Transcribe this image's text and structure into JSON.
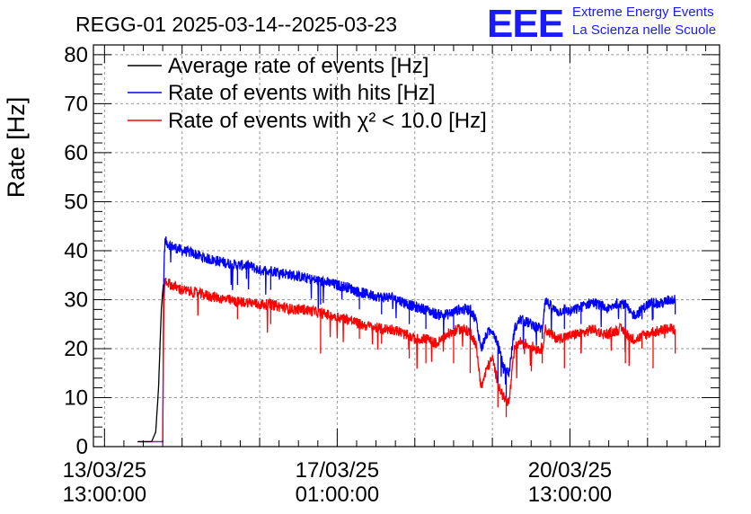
{
  "header": {
    "title": "REGG-01 2025-03-14--2025-03-23",
    "logo_text": "EEE",
    "logo_line1": "Extreme Energy Events",
    "logo_line2": "La Scienza nelle Scuole"
  },
  "chart_data": {
    "type": "line",
    "title": "REGG-01 2025-03-14--2025-03-23",
    "xlabel": "",
    "ylabel": "Rate [Hz]",
    "ylim": [
      0,
      82
    ],
    "yticks": [
      0,
      10,
      20,
      30,
      40,
      50,
      60,
      70,
      80
    ],
    "xlim_hours": [
      -4,
      222
    ],
    "xticks": [
      {
        "hour": 0,
        "date": "13/03/25",
        "time": "13:00:00"
      },
      {
        "hour": 84,
        "date": "17/03/25",
        "time": "01:00:00"
      },
      {
        "hour": 168,
        "date": "20/03/25",
        "time": "13:00:00"
      }
    ],
    "x_unit": "hours since 13/03/25 13:00:00",
    "grid": true,
    "legend_position": "top-left",
    "series": [
      {
        "name": "Average rate of events [Hz]",
        "color": "#000000",
        "points": [
          [
            12,
            1
          ],
          [
            17,
            1
          ],
          [
            18.5,
            3
          ],
          [
            19.5,
            12
          ],
          [
            20.5,
            28
          ],
          [
            21.2,
            33
          ],
          [
            21.5,
            33
          ]
        ]
      },
      {
        "name": "Rate of events with hits [Hz]",
        "color": "#0000ff",
        "points": [
          [
            12,
            1
          ],
          [
            21,
            1
          ],
          [
            21.4,
            36
          ],
          [
            21.8,
            42
          ],
          [
            24,
            41
          ],
          [
            28,
            40
          ],
          [
            32,
            39.5
          ],
          [
            36,
            38.5
          ],
          [
            40,
            38
          ],
          [
            44,
            37.5
          ],
          [
            48,
            37
          ],
          [
            52,
            37
          ],
          [
            56,
            36
          ],
          [
            60,
            36
          ],
          [
            64,
            35.5
          ],
          [
            68,
            35
          ],
          [
            72,
            34.5
          ],
          [
            76,
            34
          ],
          [
            80,
            33.5
          ],
          [
            84,
            33
          ],
          [
            88,
            32.5
          ],
          [
            92,
            31.5
          ],
          [
            96,
            31
          ],
          [
            100,
            30.5
          ],
          [
            104,
            30.5
          ],
          [
            108,
            29.5
          ],
          [
            112,
            28.5
          ],
          [
            116,
            28
          ],
          [
            120,
            27
          ],
          [
            124,
            27
          ],
          [
            128,
            28
          ],
          [
            132,
            28
          ],
          [
            134,
            26
          ],
          [
            136,
            20
          ],
          [
            138,
            23
          ],
          [
            140,
            24
          ],
          [
            142,
            21
          ],
          [
            144,
            16
          ],
          [
            146,
            15
          ],
          [
            148,
            24
          ],
          [
            150,
            26
          ],
          [
            152,
            25.5
          ],
          [
            154,
            25
          ],
          [
            156,
            24.5
          ],
          [
            158,
            24
          ],
          [
            159,
            30
          ],
          [
            162,
            28
          ],
          [
            164,
            27.5
          ],
          [
            166,
            28
          ],
          [
            168,
            27.5
          ],
          [
            170,
            28
          ],
          [
            172,
            28.5
          ],
          [
            174,
            29
          ],
          [
            176,
            29.5
          ],
          [
            178,
            29
          ],
          [
            180,
            28.5
          ],
          [
            182,
            28
          ],
          [
            184,
            29
          ],
          [
            186,
            29.5
          ],
          [
            188,
            29
          ],
          [
            190,
            27
          ],
          [
            192,
            27
          ],
          [
            194,
            28
          ],
          [
            196,
            29
          ],
          [
            198,
            29.5
          ],
          [
            200,
            29
          ],
          [
            202,
            29.5
          ],
          [
            204,
            30
          ],
          [
            206,
            30
          ]
        ]
      },
      {
        "name": "Rate of events with χ² < 10.0 [Hz]",
        "color": "#ff0000",
        "points": [
          [
            12,
            1
          ],
          [
            21,
            1
          ],
          [
            21.4,
            28
          ],
          [
            21.8,
            34
          ],
          [
            24,
            33
          ],
          [
            28,
            32
          ],
          [
            32,
            31.5
          ],
          [
            36,
            31
          ],
          [
            40,
            30.5
          ],
          [
            44,
            30
          ],
          [
            48,
            29.5
          ],
          [
            52,
            29.5
          ],
          [
            56,
            29
          ],
          [
            60,
            29
          ],
          [
            64,
            28.5
          ],
          [
            68,
            28
          ],
          [
            72,
            28
          ],
          [
            76,
            27.5
          ],
          [
            80,
            27
          ],
          [
            84,
            26.5
          ],
          [
            88,
            26
          ],
          [
            92,
            25
          ],
          [
            96,
            24.5
          ],
          [
            100,
            24
          ],
          [
            104,
            24
          ],
          [
            108,
            23
          ],
          [
            112,
            22
          ],
          [
            116,
            22
          ],
          [
            120,
            21
          ],
          [
            124,
            23
          ],
          [
            128,
            24
          ],
          [
            132,
            23.5
          ],
          [
            134,
            21
          ],
          [
            136,
            12
          ],
          [
            138,
            16
          ],
          [
            140,
            18
          ],
          [
            142,
            13
          ],
          [
            144,
            10
          ],
          [
            146,
            9
          ],
          [
            148,
            20
          ],
          [
            150,
            21.5
          ],
          [
            152,
            21
          ],
          [
            154,
            20.5
          ],
          [
            156,
            20
          ],
          [
            158,
            20
          ],
          [
            159,
            24
          ],
          [
            162,
            22.5
          ],
          [
            164,
            22
          ],
          [
            166,
            22.5
          ],
          [
            168,
            22.5
          ],
          [
            170,
            23
          ],
          [
            172,
            23
          ],
          [
            174,
            23.5
          ],
          [
            176,
            24
          ],
          [
            178,
            23.5
          ],
          [
            180,
            23
          ],
          [
            182,
            23
          ],
          [
            184,
            23.5
          ],
          [
            186,
            24
          ],
          [
            188,
            23.5
          ],
          [
            190,
            22
          ],
          [
            192,
            22
          ],
          [
            194,
            22.5
          ],
          [
            196,
            23
          ],
          [
            198,
            23.5
          ],
          [
            200,
            23.5
          ],
          [
            202,
            24
          ],
          [
            204,
            24
          ],
          [
            206,
            24
          ]
        ]
      }
    ],
    "dips": [
      {
        "hour": 48,
        "hits": 33,
        "chi2": 26
      },
      {
        "hour": 60,
        "hits": 32,
        "chi2": 25
      },
      {
        "hour": 78,
        "hits": 29,
        "chi2": 19
      },
      {
        "hour": 92,
        "hits": 28,
        "chi2": 22
      },
      {
        "hour": 100,
        "hits": 27,
        "chi2": 21
      },
      {
        "hour": 110,
        "hits": 25,
        "chi2": 18
      },
      {
        "hour": 116,
        "hits": 24,
        "chi2": 17
      },
      {
        "hour": 126,
        "hits": 24,
        "chi2": 17
      },
      {
        "hour": 132,
        "hits": 22,
        "chi2": 15
      },
      {
        "hour": 142,
        "hits": 13,
        "chi2": 8
      },
      {
        "hour": 145,
        "hits": 10,
        "chi2": 6
      },
      {
        "hour": 158,
        "hits": 22,
        "chi2": 17
      },
      {
        "hour": 166,
        "hits": 24,
        "chi2": 16
      },
      {
        "hour": 172,
        "hits": 25,
        "chi2": 19
      },
      {
        "hour": 188,
        "hits": 24,
        "chi2": 17
      },
      {
        "hour": 194,
        "hits": 26,
        "chi2": 20
      },
      {
        "hour": 198,
        "hits": 26,
        "chi2": 16
      },
      {
        "hour": 206,
        "hits": 27,
        "chi2": 19
      }
    ]
  }
}
